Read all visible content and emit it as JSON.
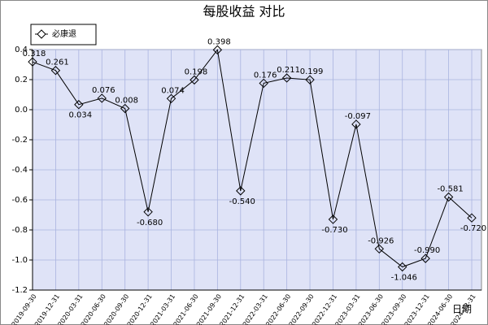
{
  "chart_data": {
    "type": "line",
    "title": "每股收益  对比",
    "x_label": "日期",
    "categories": [
      "2019-09-30",
      "2019-12-31",
      "2020-03-31",
      "2020-06-30",
      "2020-09-30",
      "2020-12-31",
      "2021-03-31",
      "2021-06-30",
      "2021-09-30",
      "2021-12-31",
      "2022-03-31",
      "2022-06-30",
      "2022-09-30",
      "2022-12-31",
      "2023-03-31",
      "2023-06-30",
      "2023-09-30",
      "2023-12-31",
      "2024-06-30",
      "2024-12-31"
    ],
    "series": [
      {
        "name": "必康退",
        "color": "#000000",
        "values": [
          0.318,
          0.261,
          0.034,
          0.076,
          0.008,
          -0.68,
          0.074,
          0.198,
          0.398,
          -0.54,
          0.176,
          0.211,
          0.199,
          -0.73,
          -0.097,
          -0.926,
          -1.046,
          -0.99,
          -0.581,
          -0.72
        ],
        "value_labels": [
          "0.318",
          "0.261",
          "0.034",
          "0.076",
          "0.008",
          "-0.680",
          "0.074",
          "0.198",
          "0.398",
          "-0.540",
          "0.176",
          "0.211",
          "0.199",
          "-0.730",
          "-0.097",
          "-0.926",
          "-1.046",
          "-0.990",
          "-0.581",
          "-0.720"
        ]
      }
    ],
    "ylim": [
      -1.2,
      0.4
    ],
    "yticks": [
      {
        "value": -1.2,
        "label": "-1.2"
      },
      {
        "value": -1,
        "label": "-1.0"
      },
      -0.8,
      -0.6,
      -0.4,
      -0.2,
      {
        "value": 0,
        "label": "0.0"
      },
      0.2,
      0.4
    ],
    "grid": true,
    "legend": "top-left"
  }
}
